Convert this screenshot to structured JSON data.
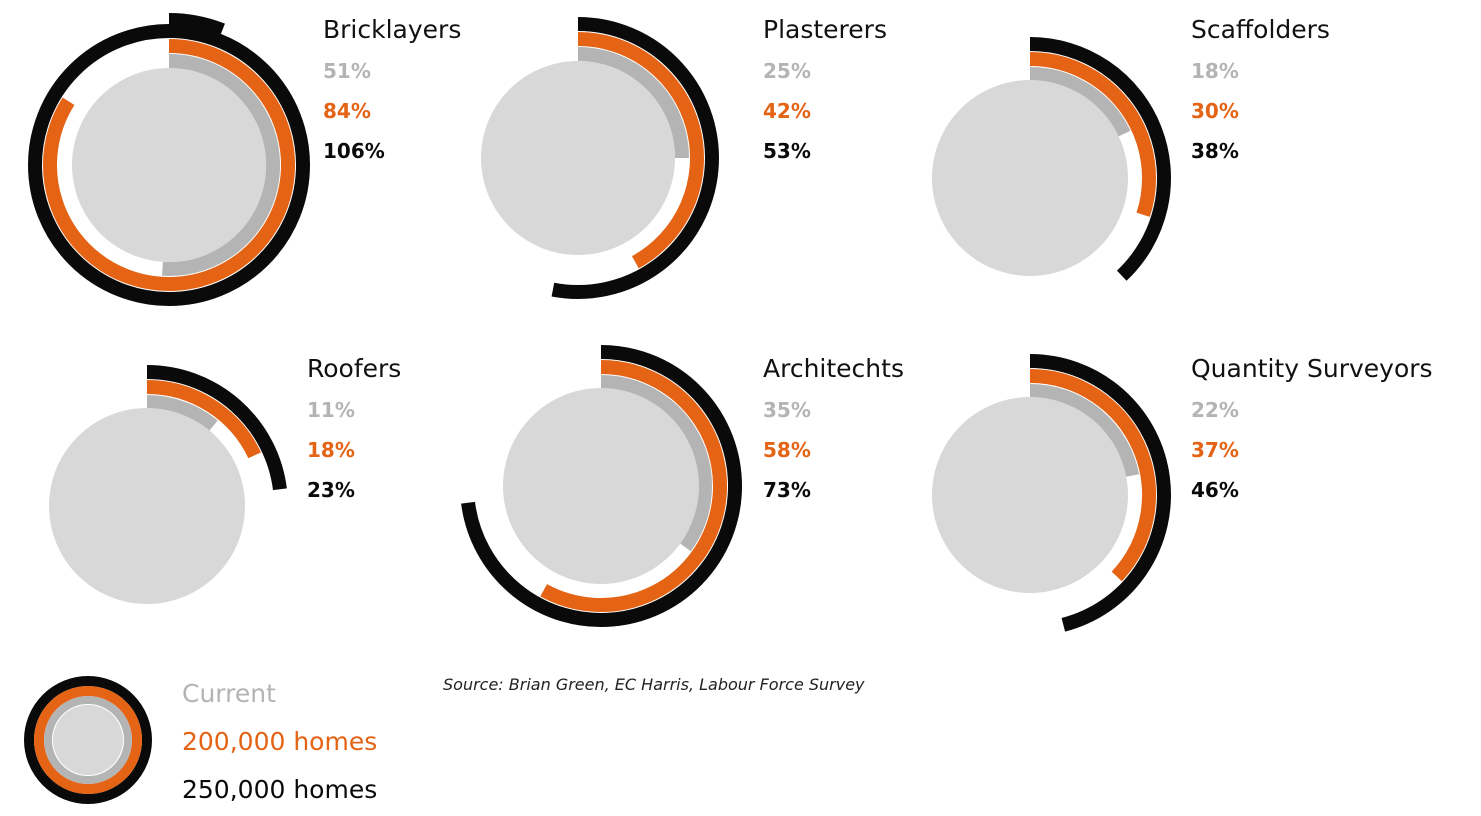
{
  "chart_data": {
    "type": "radial-bar",
    "colors": {
      "disc": "#d9d8d8",
      "current": "#b5b4b4",
      "homes_200k": "#e46314",
      "homes_250k": "#0a0a0a",
      "current_text": "#b5b4b4",
      "homes_200k_text": "#e46314",
      "homes_250k_text": "#0a0a0a"
    },
    "series": [
      {
        "key": "current",
        "name": "Current"
      },
      {
        "key": "homes_200k",
        "name": "200,000 homes"
      },
      {
        "key": "homes_250k",
        "name": "250,000 homes"
      }
    ],
    "trades": [
      {
        "name": "Bricklayers",
        "values": [
          51,
          84,
          106
        ],
        "labels": [
          "51%",
          "84%",
          "106%"
        ]
      },
      {
        "name": "Plasterers",
        "values": [
          25,
          42,
          53
        ],
        "labels": [
          "25%",
          "42%",
          "53%"
        ]
      },
      {
        "name": "Scaffolders",
        "values": [
          18,
          30,
          38
        ],
        "labels": [
          "18%",
          "30%",
          "38%"
        ]
      },
      {
        "name": "Roofers",
        "values": [
          11,
          18,
          23
        ],
        "labels": [
          "11%",
          "18%",
          "23%"
        ]
      },
      {
        "name": "Architechts",
        "values": [
          35,
          58,
          73
        ],
        "labels": [
          "35%",
          "58%",
          "73%"
        ]
      },
      {
        "name": "Quantity Surveyors",
        "values": [
          22,
          37,
          46
        ],
        "labels": [
          "22%",
          "37%",
          "46%"
        ]
      }
    ],
    "legend": {
      "items": [
        "Current",
        "200,000 homes",
        "250,000 homes"
      ]
    },
    "source": "Source: Brian Green, EC Harris, Labour Force Survey"
  }
}
